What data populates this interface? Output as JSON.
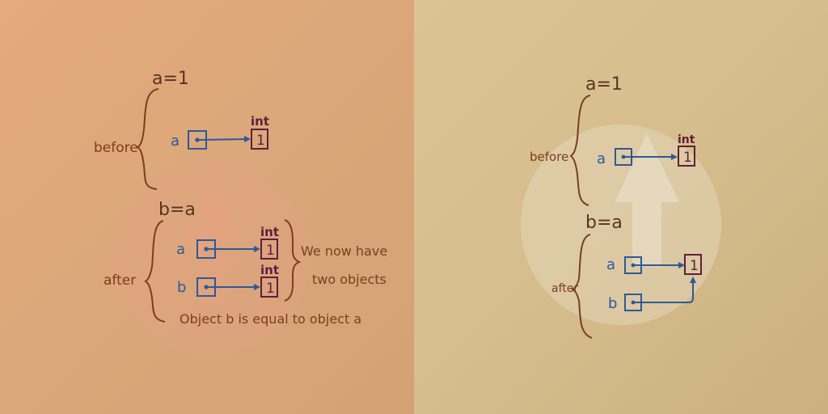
{
  "colors": {
    "label_brown": "#7a3f1f",
    "statement_brown": "#5a3420",
    "variable_blue": "#2c5a98",
    "object_maroon": "#5e1f3a",
    "left_background": "#dfa87b",
    "right_background": "#d8bf90"
  },
  "left_panel": {
    "statement_1": "a=1",
    "statement_2": "b=a",
    "before_label": "before",
    "after_label": "after",
    "var_a": "a",
    "var_b": "b",
    "type_label": "int",
    "value": "1",
    "note_line_1": "We now have",
    "note_line_2": "two objects",
    "bottom_note": "Object b is equal to object a"
  },
  "right_panel": {
    "statement_1": "a=1",
    "statement_2": "b=a",
    "before_label": "before",
    "after_label": "after",
    "var_a": "a",
    "var_b": "b",
    "type_label": "int",
    "value": "1"
  }
}
